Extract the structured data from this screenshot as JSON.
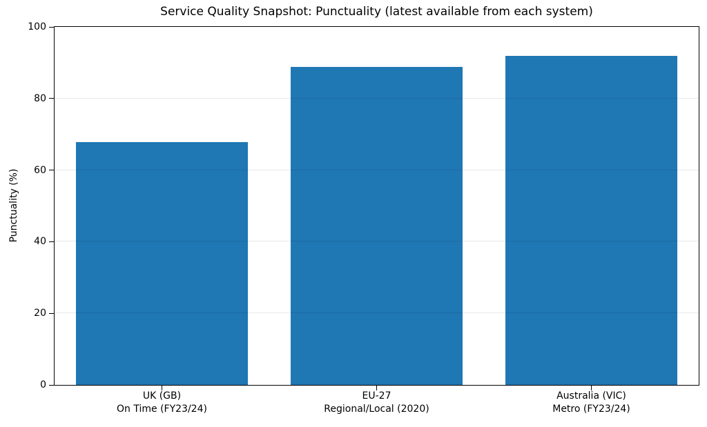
{
  "chart_data": {
    "type": "bar",
    "title": "Service Quality Snapshot: Punctuality (latest available from each system)",
    "xlabel": "",
    "ylabel": "Punctuality (%)",
    "ylim": [
      0,
      100
    ],
    "yticks": [
      0,
      20,
      40,
      60,
      80,
      100
    ],
    "grid": "horizontal, light gray, drawn over bars",
    "legend": "none",
    "bar_color": "#1f77b4",
    "background_color": "#ffffff",
    "categories": [
      [
        "UK (GB)",
        "On Time (FY23/24)"
      ],
      [
        "EU-27",
        "Regional/Local (2020)"
      ],
      [
        "Australia (VIC)",
        "Metro (FY23/24)"
      ]
    ],
    "values": [
      67.8,
      88.9,
      92.0
    ],
    "bar_width_fraction": 0.8
  }
}
